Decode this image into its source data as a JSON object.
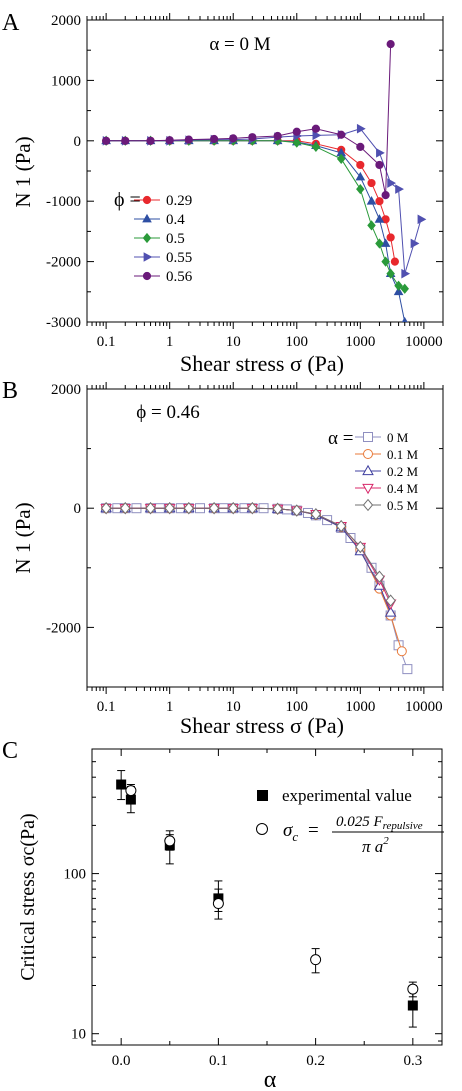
{
  "chart_data": [
    {
      "panel_label": "A",
      "type": "scatter",
      "annotation": "α = 0 M",
      "xlabel": "Shear stress σ (Pa)",
      "ylabel": "N 1 (Pa)",
      "xscale": "log",
      "xlim": [
        0.05,
        20000
      ],
      "ylim": [
        -3000,
        2000
      ],
      "xticks": [
        "0.1",
        "1",
        "10",
        "100",
        "1000",
        "10000"
      ],
      "yticks": [
        "2000",
        "1000",
        "0",
        "-1000",
        "-2000",
        "-3000"
      ],
      "legend_title": "ϕ =",
      "legend_position": "left-middle",
      "series": [
        {
          "name": "0.29",
          "color": "#e8282d",
          "marker": "circle",
          "filled": true,
          "x": [
            0.1,
            0.2,
            0.5,
            1,
            2,
            5,
            10,
            20,
            50,
            100,
            200,
            500,
            1000,
            1500,
            2000,
            2500,
            3000,
            3500
          ],
          "y": [
            0,
            0,
            0,
            0,
            0,
            0,
            0,
            0,
            0,
            0,
            -50,
            -150,
            -400,
            -700,
            -1000,
            -1300,
            -1600,
            -2000
          ]
        },
        {
          "name": "0.4",
          "color": "#2e4fa3",
          "marker": "triangle-up",
          "filled": true,
          "x": [
            0.1,
            0.2,
            0.5,
            1,
            2,
            5,
            10,
            20,
            50,
            100,
            200,
            500,
            1000,
            1500,
            2000,
            2500,
            3000,
            4000,
            5000
          ],
          "y": [
            0,
            0,
            0,
            0,
            0,
            0,
            0,
            0,
            0,
            -20,
            -80,
            -200,
            -600,
            -1000,
            -1300,
            -1700,
            -2200,
            -2500,
            -3000
          ]
        },
        {
          "name": "0.5",
          "color": "#2a9a3a",
          "marker": "diamond",
          "filled": true,
          "x": [
            0.1,
            0.2,
            0.5,
            1,
            2,
            5,
            10,
            20,
            50,
            100,
            200,
            500,
            1000,
            1500,
            2000,
            2500,
            3000,
            4000,
            5000
          ],
          "y": [
            0,
            0,
            0,
            0,
            0,
            0,
            0,
            0,
            0,
            -30,
            -100,
            -300,
            -800,
            -1400,
            -1700,
            -2000,
            -2200,
            -2400,
            -2450
          ]
        },
        {
          "name": "0.55",
          "color": "#5050b0",
          "marker": "triangle-right",
          "filled": true,
          "x": [
            0.1,
            0.2,
            0.5,
            1,
            2,
            5,
            10,
            20,
            50,
            100,
            200,
            500,
            1000,
            2000,
            3000,
            4000,
            5000,
            7000,
            9000
          ],
          "y": [
            0,
            0,
            0,
            0,
            10,
            20,
            20,
            30,
            60,
            80,
            90,
            100,
            200,
            -200,
            -700,
            -800,
            -2200,
            -1700,
            -1300
          ]
        },
        {
          "name": "0.56",
          "color": "#6a1a7a",
          "marker": "circle",
          "filled": true,
          "x": [
            0.1,
            0.2,
            0.5,
            1,
            2,
            5,
            10,
            20,
            50,
            100,
            200,
            500,
            1000,
            2000,
            2500,
            3000
          ],
          "y": [
            0,
            0,
            0,
            10,
            20,
            30,
            40,
            60,
            80,
            150,
            200,
            100,
            -100,
            -400,
            -900,
            1600
          ]
        }
      ]
    },
    {
      "panel_label": "B",
      "type": "scatter",
      "annotation": "ϕ = 0.46",
      "xlabel": "Shear stress σ (Pa)",
      "ylabel": "N 1 (Pa)",
      "xscale": "log",
      "xlim": [
        0.05,
        20000
      ],
      "ylim": [
        -3000,
        2000
      ],
      "xticks": [
        "0.1",
        "1",
        "10",
        "100",
        "1000",
        "10000"
      ],
      "yticks": [
        "2000",
        "0",
        "-2000"
      ],
      "legend_title": "α =",
      "legend_position": "top-right",
      "series": [
        {
          "name": "0 M",
          "color": "#8f8fc0",
          "marker": "square",
          "filled": false,
          "x": [
            0.1,
            0.15,
            0.2,
            0.3,
            0.5,
            0.7,
            1,
            1.5,
            2,
            3,
            5,
            7,
            10,
            15,
            20,
            30,
            50,
            70,
            100,
            150,
            200,
            300,
            500,
            700,
            1000,
            1500,
            2000,
            3000,
            4000,
            5500
          ],
          "y": [
            0,
            0,
            0,
            0,
            0,
            0,
            0,
            0,
            0,
            0,
            0,
            0,
            0,
            0,
            0,
            0,
            -10,
            -20,
            -40,
            -80,
            -120,
            -200,
            -330,
            -500,
            -700,
            -1000,
            -1300,
            -1800,
            -2300,
            -2700
          ]
        },
        {
          "name": "0.1 M",
          "color": "#e87a3a",
          "marker": "circle",
          "filled": false,
          "x": [
            0.1,
            0.2,
            0.5,
            1,
            2,
            5,
            10,
            20,
            50,
            100,
            200,
            500,
            1000,
            2000,
            3000,
            4500
          ],
          "y": [
            0,
            0,
            0,
            0,
            0,
            0,
            0,
            0,
            -10,
            -40,
            -110,
            -320,
            -700,
            -1350,
            -1800,
            -2400
          ]
        },
        {
          "name": "0.2 M",
          "color": "#4040a0",
          "marker": "triangle-up",
          "filled": false,
          "x": [
            0.1,
            0.2,
            0.5,
            1,
            2,
            5,
            10,
            20,
            50,
            100,
            200,
            500,
            1000,
            2000,
            3000
          ],
          "y": [
            0,
            0,
            0,
            0,
            0,
            0,
            0,
            0,
            -10,
            -40,
            -110,
            -320,
            -720,
            -1300,
            -1750
          ]
        },
        {
          "name": "0.4 M",
          "color": "#d8286a",
          "marker": "triangle-down",
          "filled": false,
          "x": [
            0.1,
            0.2,
            0.5,
            1,
            2,
            5,
            10,
            20,
            50,
            100,
            200,
            500,
            1000,
            2000,
            3000
          ],
          "y": [
            0,
            0,
            0,
            0,
            0,
            0,
            0,
            0,
            -10,
            -40,
            -100,
            -300,
            -650,
            -1200,
            -1600
          ]
        },
        {
          "name": "0.5 M",
          "color": "#707070",
          "marker": "diamond",
          "filled": false,
          "x": [
            0.1,
            0.2,
            0.5,
            1,
            2,
            5,
            10,
            20,
            50,
            100,
            200,
            500,
            1000,
            2000,
            3000
          ],
          "y": [
            0,
            0,
            0,
            0,
            0,
            0,
            0,
            0,
            -10,
            -40,
            -100,
            -300,
            -650,
            -1150,
            -1550
          ]
        }
      ]
    },
    {
      "panel_label": "C",
      "type": "scatter",
      "xlabel": "α",
      "ylabel": "Critical stress σc(Pa)",
      "yscale": "log",
      "xlim": [
        -0.03,
        0.33
      ],
      "ylim": [
        8.5,
        600
      ],
      "xticks": [
        "0.0",
        "0.1",
        "0.2",
        "0.3"
      ],
      "yticks": [
        "100",
        "10"
      ],
      "legend_position": "top-right",
      "series": [
        {
          "name": "experimental value",
          "marker": "square",
          "filled": true,
          "x": [
            0,
            0.01,
            0.05,
            0.1,
            0.3
          ],
          "y": [
            360,
            290,
            150,
            70,
            15
          ],
          "err_low": [
            290,
            240,
            115,
            58,
            11
          ],
          "err_high": [
            440,
            350,
            175,
            90,
            20
          ]
        },
        {
          "name": "formula",
          "marker": "circle",
          "filled": false,
          "x": [
            0.01,
            0.05,
            0.1,
            0.2,
            0.3
          ],
          "y": [
            330,
            160,
            65,
            29,
            19
          ],
          "err_low": [
            300,
            140,
            52,
            24,
            17
          ],
          "err_high": [
            360,
            185,
            80,
            34,
            21
          ]
        }
      ],
      "formula": {
        "lhs": "σ",
        "lhs_sub": "c",
        "eq": "=",
        "numerator": "0.025 F",
        "numerator_sub": "repulsive",
        "denominator": "π a",
        "denominator_sup": "2"
      }
    }
  ]
}
